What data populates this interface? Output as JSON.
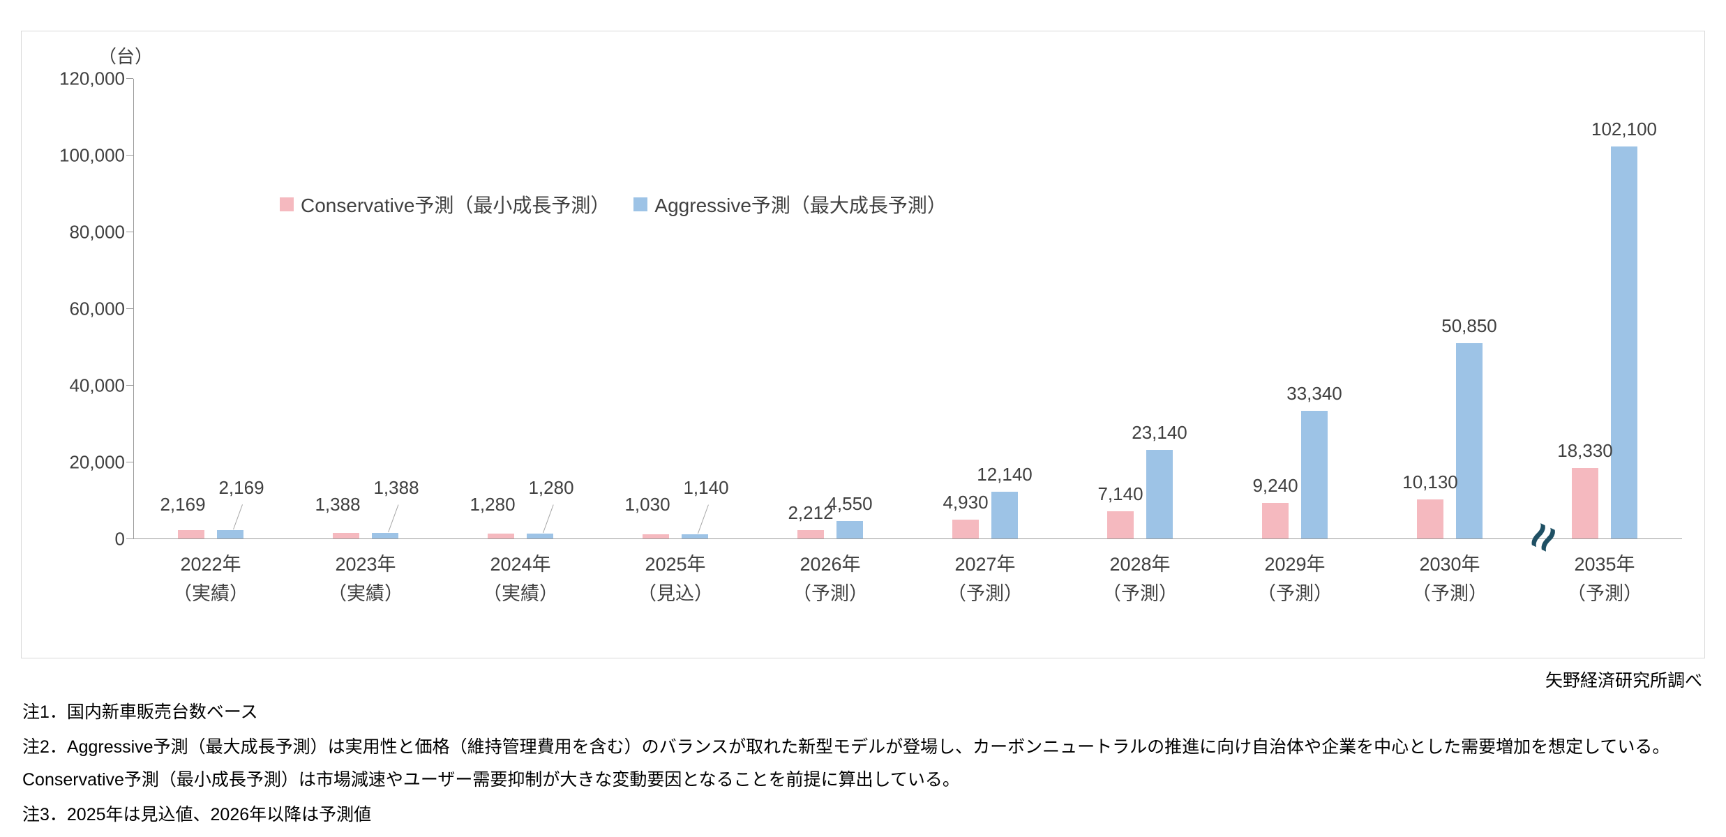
{
  "source": "矢野経済研究所調べ",
  "notes": [
    "注1．国内新車販売台数ベース",
    "注2．Aggressive予測（最大成長予測）は実用性と価格（維持管理費用を含む）のバランスが取れた新型モデルが登場し、カーボンニュートラルの推進に向け自治体や企業を中心とした需要増加を想定している。Conservative予測（最小成長予測）は市場減速やユーザー需要抑制が大きな変動要因となることを前提に算出している。",
    "注3．2025年は見込値、2026年以降は予測値"
  ],
  "chart_data": {
    "type": "bar",
    "unit": "（台）",
    "ylabel": "台",
    "ylim": [
      0,
      120000
    ],
    "ytick_step": 20000,
    "grid": false,
    "legend_position": "inside-upper-left",
    "categories": [
      {
        "year": "2022年",
        "status": "（実績）"
      },
      {
        "year": "2023年",
        "status": "（実績）"
      },
      {
        "year": "2024年",
        "status": "（実績）"
      },
      {
        "year": "2025年",
        "status": "（見込）"
      },
      {
        "year": "2026年",
        "status": "（予測）"
      },
      {
        "year": "2027年",
        "status": "（予測）"
      },
      {
        "year": "2028年",
        "status": "（予測）"
      },
      {
        "year": "2029年",
        "status": "（予測）"
      },
      {
        "year": "2030年",
        "status": "（予測）"
      },
      {
        "year": "2035年",
        "status": "（予測）"
      }
    ],
    "series": [
      {
        "name": "Conservative予測（最小成長予測）",
        "color": "#f5b9bf",
        "values": [
          2169,
          1388,
          1280,
          1030,
          2212,
          4930,
          7140,
          9240,
          10130,
          18330
        ]
      },
      {
        "name": "Aggressive予測（最大成長予測）",
        "color": "#9dc3e6",
        "values": [
          2169,
          1388,
          1280,
          1140,
          4550,
          12140,
          23140,
          33340,
          50850,
          102100
        ]
      }
    ],
    "axis_break_between": [
      "2030年",
      "2035年"
    ]
  }
}
